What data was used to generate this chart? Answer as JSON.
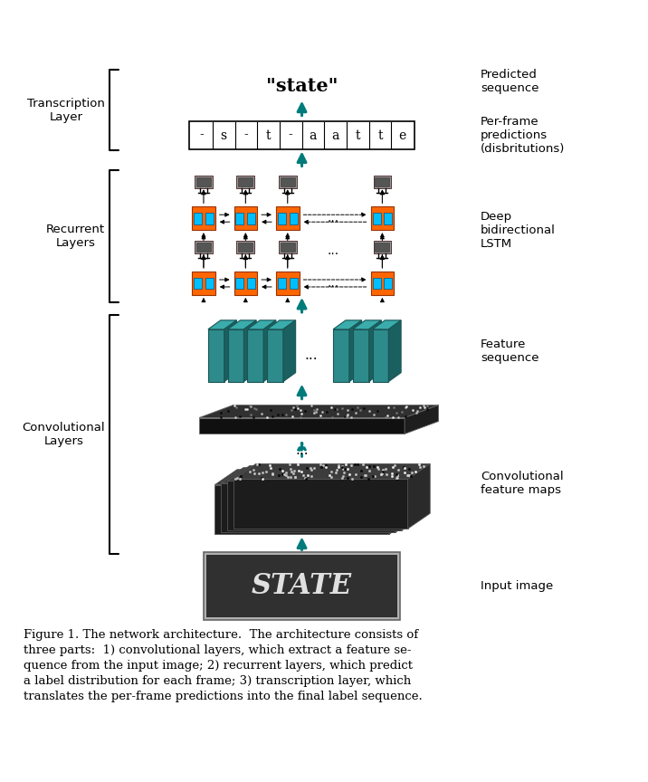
{
  "caption": "Figure 1. The network architecture.  The architecture consists of\nthree parts:  1) convolutional layers, which extract a feature se-\nquence from the input image; 2) recurrent layers, which predict\na label distribution for each frame; 3) transcription layer, which\ntranslates the per-frame predictions into the final label sequence.",
  "sequence_chars": [
    "-",
    "s",
    "-",
    "t",
    "-",
    "a",
    "a",
    "t",
    "t",
    "e"
  ],
  "label_transcription": "Transcription\nLayer",
  "label_recurrent": "Recurrent\nLayers",
  "label_convolutional": "Convolutional\nLayers",
  "label_predicted": "Predicted\nsequence",
  "label_perframe": "Per-frame\npredictions\n(disbritutions)",
  "label_deep": "Deep\nbidirectional\nLSTM",
  "label_feature": "Feature\nsequence",
  "label_conv_maps": "Convolutional\nfeature maps",
  "label_input": "Input image",
  "state_text": "\"state\"",
  "teal": "#007B7B",
  "orange": "#FF6600",
  "cyan": "#00BFFF",
  "gray_node": "#888888",
  "feat_face": "#2E8B8B",
  "feat_top": "#3aacac",
  "feat_right": "#1a6060",
  "background": "#ffffff"
}
